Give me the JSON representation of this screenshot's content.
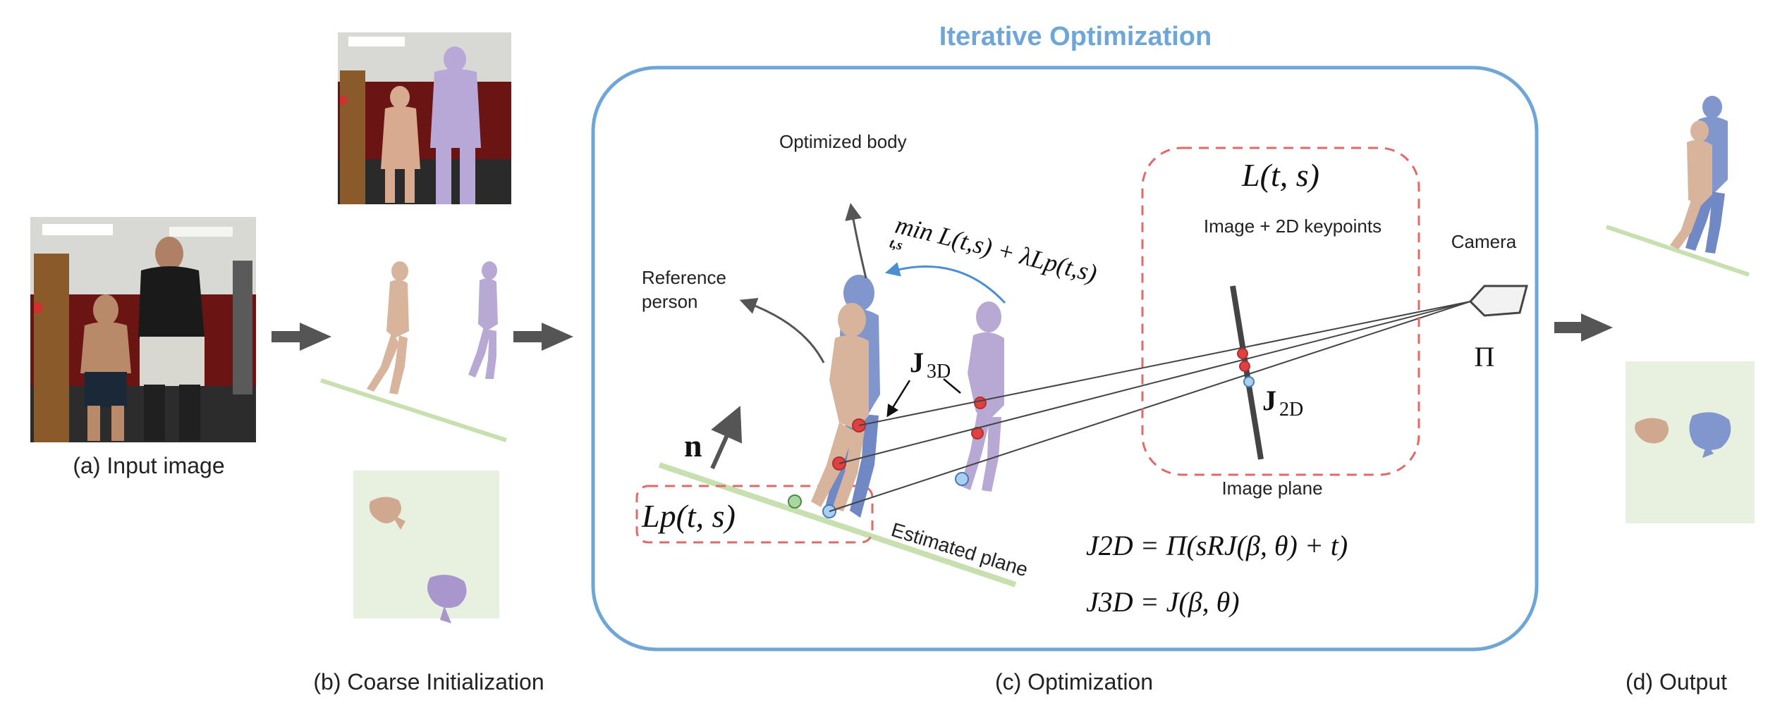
{
  "panels": {
    "input_caption": "(a) Input image",
    "coarse_caption": "(b) Coarse Initialization",
    "optimization_caption": "(c) Optimization",
    "output_caption": "(d) Output"
  },
  "optimization": {
    "title": "Iterative Optimization",
    "optimized_body": "Optimized body",
    "reference_person_line1": "Reference",
    "reference_person_line2": "person",
    "objective": "min L(t,s) + λLp(t,s)",
    "objective_sub": "t,s",
    "j3d_symbol": "J",
    "j3d_sub": "3D",
    "normal_symbol": "n",
    "plane_loss": "Lp(t, s)",
    "estimated_plane": "Estimated plane",
    "image_loss": "L(t, s)",
    "image_keypoints": "Image + 2D keypoints",
    "j2d_symbol": "J",
    "j2d_sub": "2D",
    "image_plane": "Image plane",
    "camera": "Camera",
    "projection_symbol": "Π",
    "eq1": "J2D = Π(sRJ(β, θ) + t)",
    "eq2": "J3D = J(β, θ)"
  },
  "colors": {
    "accent_blue": "#6fa6d8",
    "dashed_red": "#e06a6a",
    "reference_body": "#d8b49c",
    "optimized_body": "#8096cc",
    "init_body": "#b8a8d4",
    "plane_green": "#c8e0b0",
    "keypoint_red": "#e04040",
    "keypoint_blue": "#a8d0f0",
    "keypoint_green": "#a8d8a0",
    "arrow_gray": "#555555"
  },
  "icons": {
    "flow_arrow": "right-arrow-icon",
    "camera": "camera-icon"
  }
}
